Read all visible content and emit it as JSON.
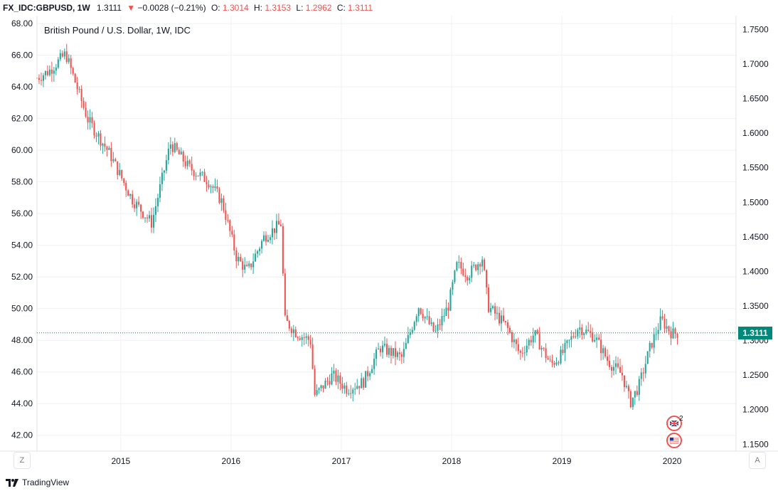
{
  "header": {
    "symbol": "FX_IDC:GBPUSD, 1W",
    "last": "1.3111",
    "change_arrow": "▼",
    "change": "−0.0028 (−0.21%)",
    "o_label": "O:",
    "o_value": "1.3014",
    "h_label": "H:",
    "h_value": "1.3153",
    "l_label": "L:",
    "l_value": "1.2962",
    "c_label": "C:",
    "c_value": "1.3111"
  },
  "footer": {
    "brand": "TradingView",
    "left_button": "Z",
    "right_button": "A"
  },
  "events": {
    "uk_count": "2"
  },
  "colors": {
    "up": "#26a69a",
    "down": "#ef5350",
    "grid": "#eef1f5",
    "price_line": "#00897b"
  },
  "chart_data": {
    "type": "candlestick",
    "title": "British Pound / U.S. Dollar, 1W, IDC",
    "x_ticks": [
      "2015",
      "2016",
      "2017",
      "2018",
      "2019",
      "2020"
    ],
    "x_range": [
      2014.24,
      2020.58
    ],
    "left_axis": {
      "ticks": [
        "42.00",
        "44.00",
        "46.00",
        "48.00",
        "50.00",
        "52.00",
        "54.00",
        "56.00",
        "58.00",
        "60.00",
        "62.00",
        "64.00",
        "66.00",
        "68.00"
      ],
      "range": [
        41.0,
        68.5
      ]
    },
    "right_axis": {
      "ticks": [
        "1.1500",
        "1.2000",
        "1.2500",
        "1.3000",
        "1.3500",
        "1.4000",
        "1.4500",
        "1.5000",
        "1.5500",
        "1.6000",
        "1.6500",
        "1.7000",
        "1.7500"
      ],
      "range": [
        1.14,
        1.77
      ]
    },
    "last_price": "1.3111",
    "grid": true,
    "anchors": [
      {
        "t": 2014.24,
        "v": 1.68
      },
      {
        "t": 2014.35,
        "v": 1.69
      },
      {
        "t": 2014.5,
        "v": 1.715
      },
      {
        "t": 2014.7,
        "v": 1.62
      },
      {
        "t": 2014.9,
        "v": 1.57
      },
      {
        "t": 2015.1,
        "v": 1.505
      },
      {
        "t": 2015.28,
        "v": 1.47
      },
      {
        "t": 2015.45,
        "v": 1.585
      },
      {
        "t": 2015.62,
        "v": 1.55
      },
      {
        "t": 2015.8,
        "v": 1.53
      },
      {
        "t": 2015.92,
        "v": 1.5
      },
      {
        "t": 2016.05,
        "v": 1.42
      },
      {
        "t": 2016.15,
        "v": 1.4
      },
      {
        "t": 2016.3,
        "v": 1.45
      },
      {
        "t": 2016.46,
        "v": 1.47
      },
      {
        "t": 2016.48,
        "v": 1.33
      },
      {
        "t": 2016.6,
        "v": 1.31
      },
      {
        "t": 2016.72,
        "v": 1.3
      },
      {
        "t": 2016.76,
        "v": 1.22
      },
      {
        "t": 2016.92,
        "v": 1.25
      },
      {
        "t": 2017.05,
        "v": 1.23
      },
      {
        "t": 2017.2,
        "v": 1.24
      },
      {
        "t": 2017.35,
        "v": 1.29
      },
      {
        "t": 2017.55,
        "v": 1.275
      },
      {
        "t": 2017.7,
        "v": 1.35
      },
      {
        "t": 2017.85,
        "v": 1.31
      },
      {
        "t": 2017.97,
        "v": 1.35
      },
      {
        "t": 2018.05,
        "v": 1.41
      },
      {
        "t": 2018.15,
        "v": 1.395
      },
      {
        "t": 2018.28,
        "v": 1.42
      },
      {
        "t": 2018.33,
        "v": 1.35
      },
      {
        "t": 2018.5,
        "v": 1.32
      },
      {
        "t": 2018.62,
        "v": 1.28
      },
      {
        "t": 2018.75,
        "v": 1.31
      },
      {
        "t": 2018.9,
        "v": 1.265
      },
      {
        "t": 2019.0,
        "v": 1.28
      },
      {
        "t": 2019.15,
        "v": 1.32
      },
      {
        "t": 2019.3,
        "v": 1.305
      },
      {
        "t": 2019.42,
        "v": 1.27
      },
      {
        "t": 2019.55,
        "v": 1.25
      },
      {
        "t": 2019.62,
        "v": 1.21
      },
      {
        "t": 2019.7,
        "v": 1.235
      },
      {
        "t": 2019.8,
        "v": 1.29
      },
      {
        "t": 2019.9,
        "v": 1.33
      },
      {
        "t": 2020.0,
        "v": 1.31
      },
      {
        "t": 2020.05,
        "v": 1.311
      }
    ]
  }
}
